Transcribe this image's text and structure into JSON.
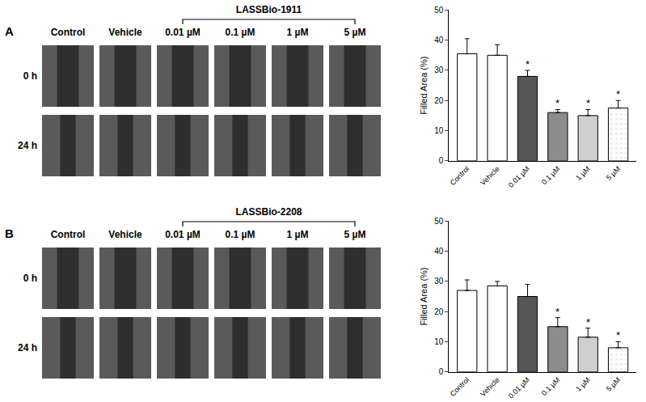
{
  "figure": {
    "panels": [
      {
        "label": "A",
        "compound": "LASSBio-1911",
        "columns": [
          "Control",
          "Vehicle",
          "0.01 µM",
          "0.1 µM",
          "1 µM",
          "5 µM"
        ],
        "rows": [
          "0 h",
          "24 h"
        ]
      },
      {
        "label": "B",
        "compound": "LASSBio-2208",
        "columns": [
          "Control",
          "Vehicle",
          "0.01 µM",
          "0.1 µM",
          "1 µM",
          "5 µM"
        ],
        "rows": [
          "0 h",
          "24 h"
        ]
      }
    ]
  },
  "chart_data": [
    {
      "type": "bar",
      "ylabel": "Filled Area (%)",
      "categories": [
        "Control",
        "Vehicle",
        "0.01 µM",
        "0.1 µM",
        "1 µM",
        "5 µM"
      ],
      "values": [
        35.5,
        35,
        28,
        16,
        15,
        17.5
      ],
      "errors": [
        5,
        3.5,
        2,
        1,
        2,
        2.5
      ],
      "colors": [
        "#ffffff",
        "#ffffff",
        "#555555",
        "#8c8c8c",
        "#cfcfcf",
        "#e8e8e8"
      ],
      "annotations": [
        {
          "category": "0.01 µM",
          "text": "*"
        },
        {
          "category": "0.1 µM",
          "text": "*"
        },
        {
          "category": "1 µM",
          "text": "*"
        },
        {
          "category": "5 µM",
          "text": "*"
        }
      ],
      "ylim": [
        0,
        50
      ],
      "yticks": [
        0,
        10,
        20,
        30,
        40,
        50
      ],
      "grid": false
    },
    {
      "type": "bar",
      "ylabel": "Filled Area (%)",
      "categories": [
        "Control",
        "Vehicle",
        "0.01 µM",
        "0.1 µM",
        "1 µM",
        "5 µM"
      ],
      "values": [
        27,
        28.5,
        25,
        15,
        11.5,
        8
      ],
      "errors": [
        3.5,
        1.5,
        4,
        3,
        3,
        2
      ],
      "colors": [
        "#ffffff",
        "#ffffff",
        "#555555",
        "#8c8c8c",
        "#cfcfcf",
        "#e8e8e8"
      ],
      "annotations": [
        {
          "category": "0.1 µM",
          "text": "*"
        },
        {
          "category": "1 µM",
          "text": "*"
        },
        {
          "category": "5 µM",
          "text": "*"
        }
      ],
      "ylim": [
        0,
        50
      ],
      "yticks": [
        0,
        10,
        20,
        30,
        40,
        50
      ],
      "grid": false
    }
  ]
}
